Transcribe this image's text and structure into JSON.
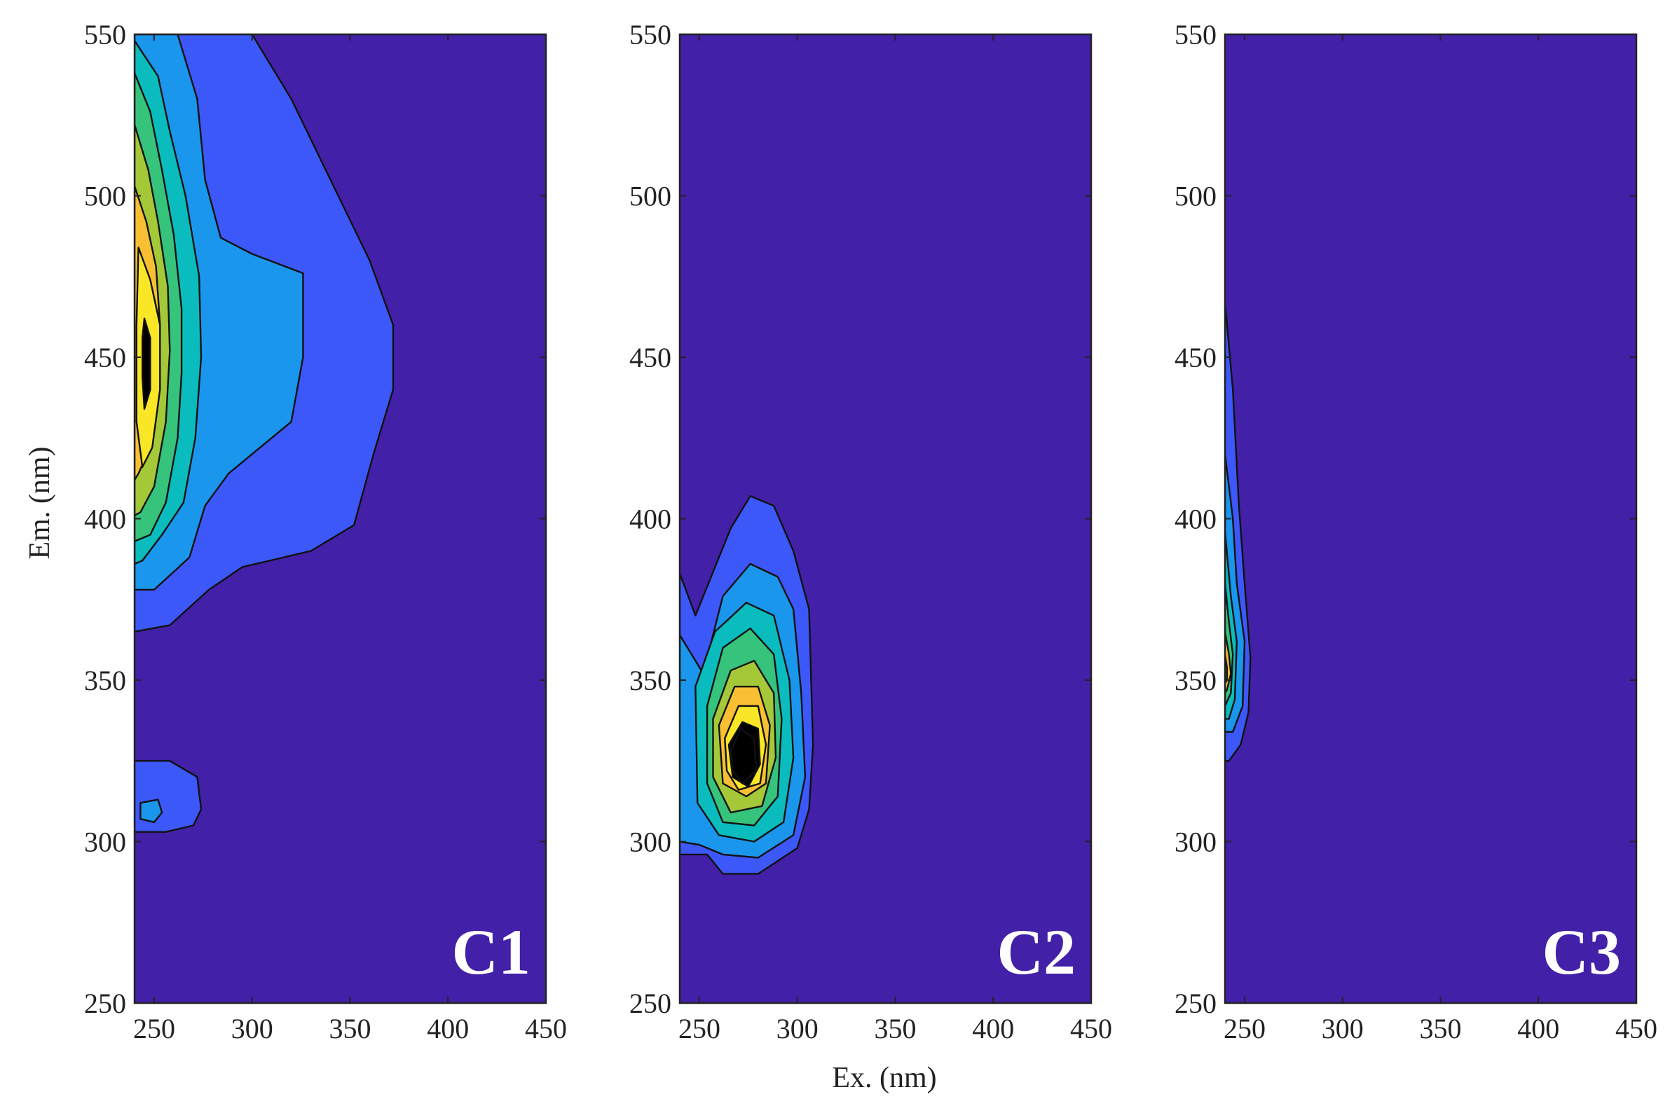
{
  "chart_data": {
    "type": "heatmap",
    "subtype": "filled contour (EEM fluorescence components)",
    "xlabel": "Ex. (nm)",
    "ylabel": "Em. (nm)",
    "xlim": [
      240,
      450
    ],
    "ylim": [
      250,
      550
    ],
    "xticks": [
      "250",
      "300",
      "350",
      "400",
      "450"
    ],
    "yticks": [
      "250",
      "300",
      "350",
      "400",
      "450",
      "500",
      "550"
    ],
    "colormap": [
      "#4220a8",
      "#3d58f8",
      "#1a96ec",
      "#0abcbd",
      "#36c37c",
      "#a4c838",
      "#f8bf32",
      "#f9e626"
    ],
    "background_color": "#4220a8",
    "panels": [
      {
        "label": "C1",
        "levels": [
          {
            "level": 1,
            "polygon": [
              [
                240,
                550
              ],
              [
                300,
                550
              ],
              [
                320,
                530
              ],
              [
                340,
                505
              ],
              [
                360,
                480
              ],
              [
                372,
                460
              ],
              [
                372,
                440
              ],
              [
                362,
                420
              ],
              [
                352,
                398
              ],
              [
                330,
                390
              ],
              [
                295,
                385
              ],
              [
                278,
                378
              ],
              [
                258,
                367
              ],
              [
                240,
                365
              ]
            ]
          },
          {
            "level": 2,
            "polygon": [
              [
                240,
                550
              ],
              [
                262,
                550
              ],
              [
                272,
                530
              ],
              [
                276,
                505
              ],
              [
                284,
                487
              ],
              [
                300,
                482
              ],
              [
                326,
                476
              ],
              [
                326,
                450
              ],
              [
                320,
                430
              ],
              [
                300,
                420
              ],
              [
                288,
                414
              ],
              [
                276,
                404
              ],
              [
                268,
                388
              ],
              [
                250,
                378
              ],
              [
                240,
                378
              ]
            ]
          },
          {
            "level": 3,
            "polygon": [
              [
                240,
                548
              ],
              [
                252,
                537
              ],
              [
                258,
                520
              ],
              [
                266,
                500
              ],
              [
                273,
                475
              ],
              [
                274,
                450
              ],
              [
                271,
                425
              ],
              [
                265,
                405
              ],
              [
                254,
                395
              ],
              [
                244,
                387
              ],
              [
                240,
                386
              ]
            ]
          },
          {
            "level": 4,
            "polygon": [
              [
                240,
                538
              ],
              [
                248,
                526
              ],
              [
                254,
                508
              ],
              [
                260,
                488
              ],
              [
                264,
                465
              ],
              [
                264,
                445
              ],
              [
                262,
                425
              ],
              [
                256,
                405
              ],
              [
                248,
                395
              ],
              [
                240,
                393
              ]
            ]
          },
          {
            "level": 5,
            "polygon": [
              [
                240,
                522
              ],
              [
                247,
                508
              ],
              [
                252,
                492
              ],
              [
                257,
                472
              ],
              [
                258,
                452
              ],
              [
                256,
                430
              ],
              [
                250,
                410
              ],
              [
                243,
                402
              ],
              [
                240,
                401
              ]
            ]
          },
          {
            "level": 6,
            "polygon": [
              [
                240,
                503
              ],
              [
                246,
                492
              ],
              [
                251,
                478
              ],
              [
                253,
                460
              ],
              [
                252,
                440
              ],
              [
                248,
                422
              ],
              [
                242,
                414
              ],
              [
                240,
                412
              ]
            ]
          },
          {
            "level": 7,
            "polygon": [
              [
                242,
                484
              ],
              [
                248,
                474
              ],
              [
                253,
                460
              ],
              [
                253,
                440
              ],
              [
                249,
                422
              ],
              [
                244,
                416
              ],
              [
                241,
                430
              ],
              [
                241,
                460
              ]
            ]
          },
          {
            "level": 8,
            "polygon": [
              [
                245,
                462
              ],
              [
                248,
                456
              ],
              [
                248,
                440
              ],
              [
                245,
                434
              ],
              [
                244,
                444
              ],
              [
                244,
                456
              ]
            ]
          },
          {
            "level": 1,
            "polygon": [
              [
                240,
                325
              ],
              [
                258,
                325
              ],
              [
                272,
                320
              ],
              [
                274,
                310
              ],
              [
                270,
                305
              ],
              [
                256,
                303
              ],
              [
                240,
                303
              ]
            ]
          },
          {
            "level": 2,
            "polygon": [
              [
                243,
                312
              ],
              [
                252,
                313
              ],
              [
                254,
                309
              ],
              [
                250,
                306
              ],
              [
                243,
                307
              ]
            ]
          }
        ]
      },
      {
        "label": "C2",
        "levels": [
          {
            "level": 1,
            "polygon": [
              [
                240,
                383
              ],
              [
                248,
                370
              ],
              [
                256,
                382
              ],
              [
                266,
                397
              ],
              [
                276,
                407
              ],
              [
                288,
                404
              ],
              [
                298,
                390
              ],
              [
                306,
                372
              ],
              [
                308,
                330
              ],
              [
                306,
                310
              ],
              [
                300,
                298
              ],
              [
                280,
                290
              ],
              [
                262,
                290
              ],
              [
                254,
                296
              ],
              [
                240,
                296
              ]
            ]
          },
          {
            "level": 2,
            "polygon": [
              [
                240,
                364
              ],
              [
                252,
                352
              ],
              [
                262,
                376
              ],
              [
                276,
                386
              ],
              [
                290,
                382
              ],
              [
                298,
                372
              ],
              [
                302,
                346
              ],
              [
                304,
                320
              ],
              [
                298,
                302
              ],
              [
                280,
                295
              ],
              [
                262,
                296
              ],
              [
                250,
                299
              ],
              [
                240,
                300
              ]
            ]
          },
          {
            "level": 3,
            "polygon": [
              [
                248,
                348
              ],
              [
                258,
                365
              ],
              [
                274,
                374
              ],
              [
                288,
                370
              ],
              [
                296,
                350
              ],
              [
                298,
                326
              ],
              [
                293,
                306
              ],
              [
                278,
                300
              ],
              [
                260,
                302
              ],
              [
                249,
                312
              ]
            ]
          },
          {
            "level": 4,
            "polygon": [
              [
                254,
                342
              ],
              [
                262,
                360
              ],
              [
                276,
                366
              ],
              [
                288,
                358
              ],
              [
                292,
                338
              ],
              [
                290,
                314
              ],
              [
                278,
                305
              ],
              [
                262,
                306
              ],
              [
                254,
                318
              ]
            ]
          },
          {
            "level": 5,
            "polygon": [
              [
                257,
                338
              ],
              [
                266,
                353
              ],
              [
                278,
                356
              ],
              [
                288,
                346
              ],
              [
                289,
                326
              ],
              [
                282,
                311
              ],
              [
                266,
                309
              ],
              [
                257,
                320
              ]
            ]
          },
          {
            "level": 6,
            "polygon": [
              [
                260,
                336
              ],
              [
                268,
                348
              ],
              [
                280,
                348
              ],
              [
                286,
                336
              ],
              [
                284,
                318
              ],
              [
                274,
                314
              ],
              [
                262,
                318
              ]
            ]
          },
          {
            "level": 7,
            "polygon": [
              [
                263,
                332
              ],
              [
                270,
                342
              ],
              [
                280,
                342
              ],
              [
                284,
                330
              ],
              [
                281,
                318
              ],
              [
                270,
                316
              ],
              [
                264,
                322
              ]
            ]
          },
          {
            "level": 8,
            "polygon": [
              [
                265,
                330
              ],
              [
                272,
                337
              ],
              [
                280,
                335
              ],
              [
                281,
                324
              ],
              [
                275,
                317
              ],
              [
                267,
                320
              ]
            ]
          },
          {
            "level": 8,
            "polygon": [
              [
                266,
                328
              ],
              [
                271,
                335
              ],
              [
                278,
                332
              ],
              [
                279,
                322
              ],
              [
                272,
                318
              ],
              [
                267,
                322
              ]
            ]
          }
        ]
      },
      {
        "label": "C3",
        "levels": [
          {
            "level": 1,
            "polygon": [
              [
                240,
                467
              ],
              [
                244,
                440
              ],
              [
                247,
                405
              ],
              [
                250,
                380
              ],
              [
                253,
                357
              ],
              [
                252,
                340
              ],
              [
                248,
                330
              ],
              [
                242,
                325
              ],
              [
                240,
                325
              ]
            ]
          },
          {
            "level": 2,
            "polygon": [
              [
                240,
                420
              ],
              [
                244,
                400
              ],
              [
                246,
                380
              ],
              [
                250,
                362
              ],
              [
                249,
                342
              ],
              [
                244,
                334
              ],
              [
                240,
                334
              ]
            ]
          },
          {
            "level": 3,
            "polygon": [
              [
                240,
                396
              ],
              [
                243,
                376
              ],
              [
                246,
                362
              ],
              [
                245,
                344
              ],
              [
                242,
                338
              ],
              [
                240,
                338
              ]
            ]
          },
          {
            "level": 4,
            "polygon": [
              [
                240,
                380
              ],
              [
                242,
                368
              ],
              [
                244,
                358
              ],
              [
                243,
                346
              ],
              [
                240,
                342
              ]
            ]
          },
          {
            "level": 6,
            "polygon": [
              [
                240,
                365
              ],
              [
                242,
                358
              ],
              [
                243,
                352
              ],
              [
                241,
                347
              ],
              [
                240,
                346
              ]
            ]
          },
          {
            "level": 7,
            "polygon": [
              [
                240,
                358
              ],
              [
                241,
                354
              ],
              [
                241,
                350
              ],
              [
                240,
                349
              ]
            ]
          }
        ]
      }
    ]
  }
}
